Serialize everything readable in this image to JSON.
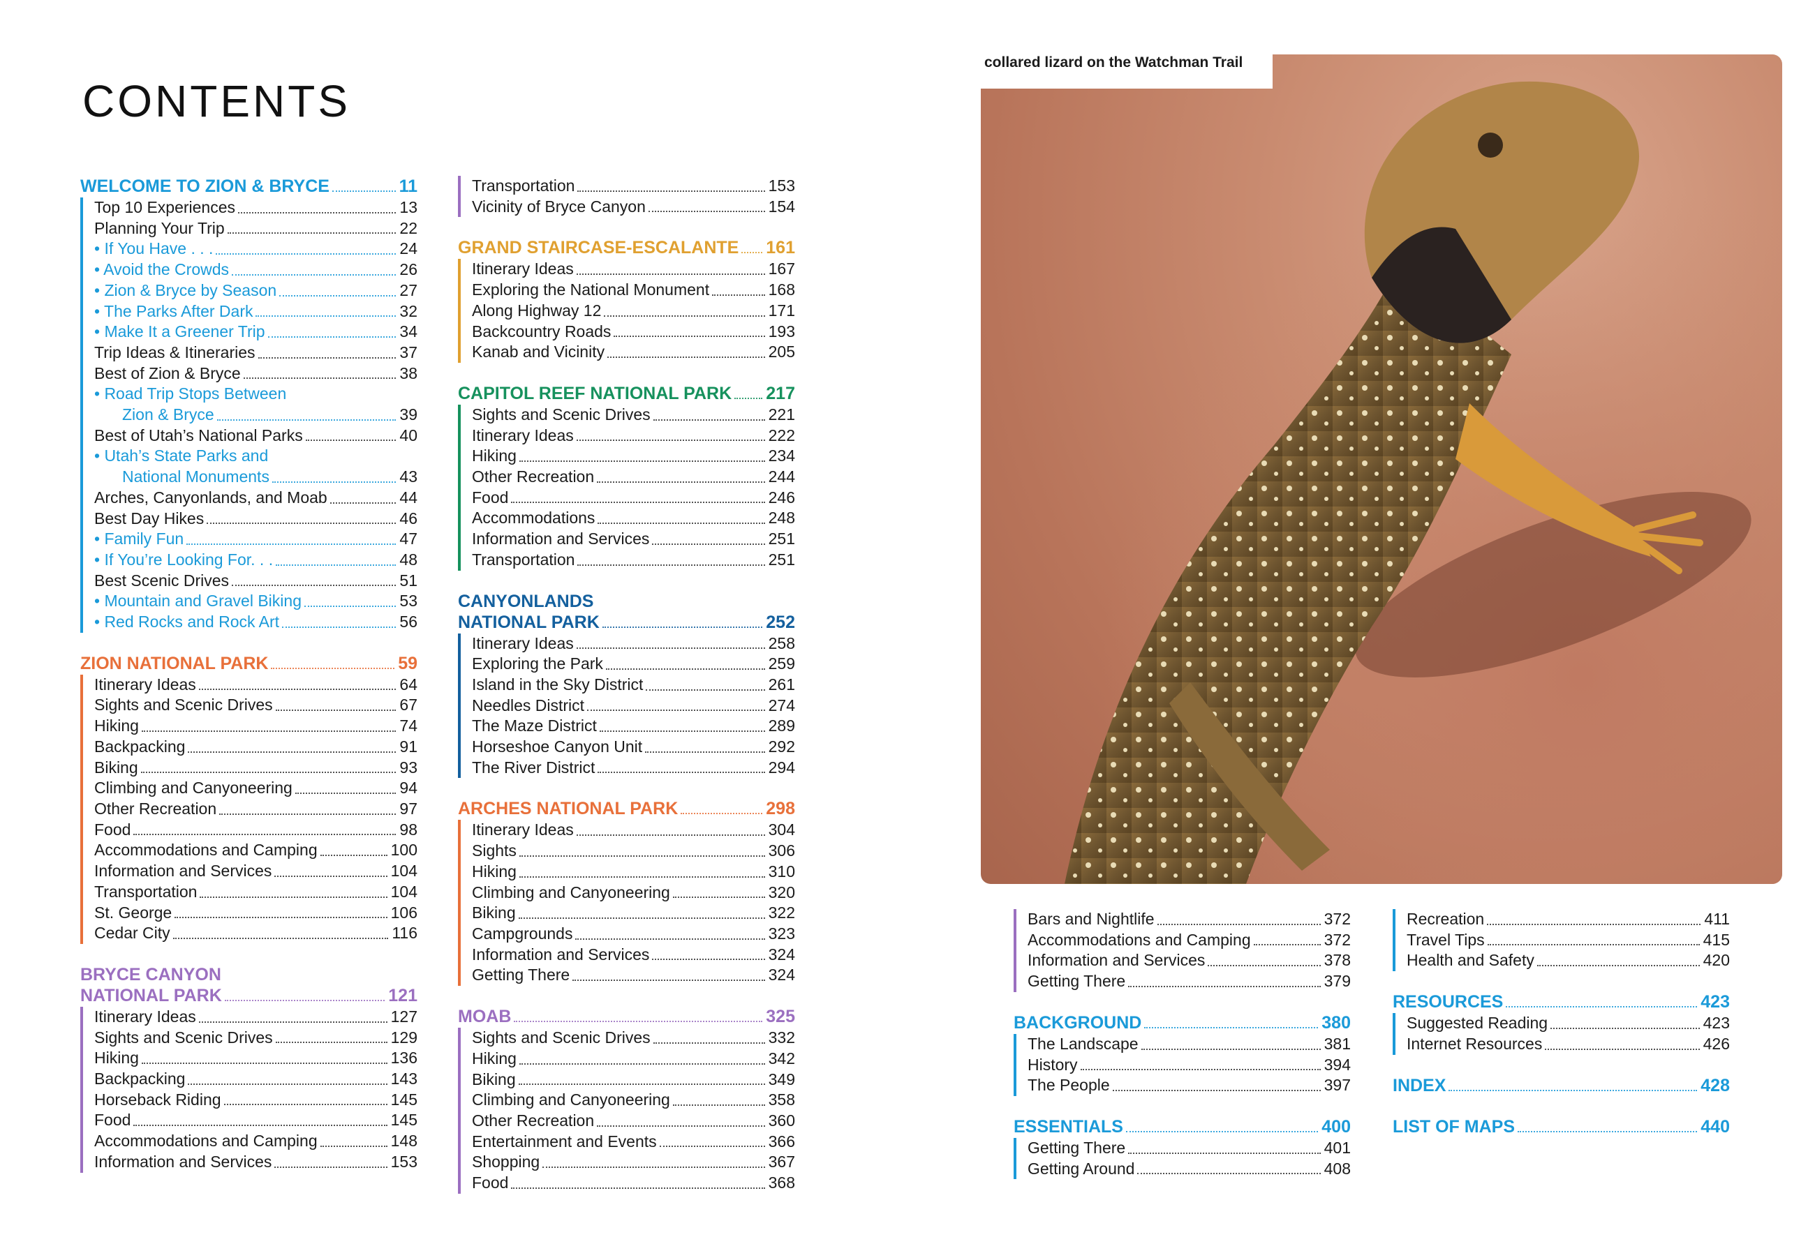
{
  "title": "CONTENTS",
  "photo": {
    "caption": "collared lizard on the Watchman Trail"
  },
  "columns": [
    {
      "sections": [
        {
          "title": "WELCOME TO ZION & BRYCE",
          "page": "11",
          "color": "#1a9ad9",
          "items": [
            {
              "label": "Top 10 Experiences",
              "page": "13"
            },
            {
              "label": "Planning Your Trip",
              "page": "22"
            },
            {
              "label": "• If You Have . . .",
              "page": "24",
              "sub": true
            },
            {
              "label": "• Avoid the Crowds",
              "page": "26",
              "sub": true
            },
            {
              "label": "• Zion & Bryce by Season",
              "page": "27",
              "sub": true
            },
            {
              "label": "• The Parks After Dark",
              "page": "32",
              "sub": true
            },
            {
              "label": "• Make It a Greener Trip",
              "page": "34",
              "sub": true
            },
            {
              "label": "Trip Ideas & Itineraries",
              "page": "37"
            },
            {
              "label": "Best of Zion & Bryce",
              "page": "38"
            },
            {
              "label": "• Road Trip Stops Between",
              "label2": "Zion & Bryce",
              "page": "39",
              "sub": true
            },
            {
              "label": "Best of Utah’s National Parks",
              "page": "40"
            },
            {
              "label": "• Utah’s State Parks and",
              "label2": "National Monuments",
              "page": "43",
              "sub": true
            },
            {
              "label": "Arches, Canyonlands, and Moab",
              "page": "44"
            },
            {
              "label": "Best Day Hikes",
              "page": "46"
            },
            {
              "label": "• Family Fun",
              "page": "47",
              "sub": true
            },
            {
              "label": "• If You’re Looking For. . .",
              "page": "48",
              "sub": true
            },
            {
              "label": "Best Scenic Drives",
              "page": "51"
            },
            {
              "label": "• Mountain and Gravel Biking",
              "page": "53",
              "sub": true
            },
            {
              "label": "• Red Rocks and Rock Art",
              "page": "56",
              "sub": true
            }
          ]
        },
        {
          "title": "ZION NATIONAL PARK",
          "page": "59",
          "color": "#e8703a",
          "items": [
            {
              "label": "Itinerary Ideas",
              "page": "64"
            },
            {
              "label": "Sights and Scenic Drives",
              "page": "67"
            },
            {
              "label": "Hiking",
              "page": "74"
            },
            {
              "label": "Backpacking",
              "page": "91"
            },
            {
              "label": "Biking",
              "page": "93"
            },
            {
              "label": "Climbing and Canyoneering",
              "page": "94"
            },
            {
              "label": "Other Recreation",
              "page": "97"
            },
            {
              "label": "Food",
              "page": "98"
            },
            {
              "label": "Accommodations and Camping",
              "page": "100"
            },
            {
              "label": "Information and Services",
              "page": "104"
            },
            {
              "label": "Transportation",
              "page": "104"
            },
            {
              "label": "St. George",
              "page": "106"
            },
            {
              "label": "Cedar City",
              "page": "116"
            }
          ]
        },
        {
          "title": "BRYCE CANYON",
          "title2": "NATIONAL PARK",
          "page": "121",
          "color": "#9b6fc0",
          "items": [
            {
              "label": "Itinerary Ideas",
              "page": "127"
            },
            {
              "label": "Sights and Scenic Drives",
              "page": "129"
            },
            {
              "label": "Hiking",
              "page": "136"
            },
            {
              "label": "Backpacking",
              "page": "143"
            },
            {
              "label": "Horseback Riding",
              "page": "145"
            },
            {
              "label": "Food",
              "page": "145"
            },
            {
              "label": "Accommodations and Camping",
              "page": "148"
            },
            {
              "label": "Information and Services",
              "page": "153"
            }
          ]
        }
      ]
    },
    {
      "sections": [
        {
          "title": "",
          "page": "",
          "color": "#9b6fc0",
          "items": [
            {
              "label": "Transportation",
              "page": "153"
            },
            {
              "label": "Vicinity of Bryce Canyon",
              "page": "154"
            }
          ]
        },
        {
          "title": "GRAND STAIRCASE-ESCALANTE",
          "page": "161",
          "color": "#e0a030",
          "items": [
            {
              "label": "Itinerary Ideas",
              "page": "167"
            },
            {
              "label": "Exploring the National Monument",
              "page": "168"
            },
            {
              "label": "Along Highway 12",
              "page": "171"
            },
            {
              "label": "Backcountry Roads",
              "page": "193"
            },
            {
              "label": "Kanab and Vicinity",
              "page": "205"
            }
          ]
        },
        {
          "title": "CAPITOL REEF NATIONAL PARK",
          "page": "217",
          "color": "#16915d",
          "items": [
            {
              "label": "Sights and Scenic Drives",
              "page": "221"
            },
            {
              "label": "Itinerary Ideas",
              "page": "222"
            },
            {
              "label": "Hiking",
              "page": "234"
            },
            {
              "label": "Other Recreation",
              "page": "244"
            },
            {
              "label": "Food",
              "page": "246"
            },
            {
              "label": "Accommodations",
              "page": "248"
            },
            {
              "label": "Information and Services",
              "page": "251"
            },
            {
              "label": "Transportation",
              "page": "251"
            }
          ]
        },
        {
          "title": "CANYONLANDS",
          "title2": "NATIONAL PARK",
          "page": "252",
          "color": "#14609e",
          "items": [
            {
              "label": "Itinerary Ideas",
              "page": "258"
            },
            {
              "label": "Exploring the Park",
              "page": "259"
            },
            {
              "label": "Island in the Sky District",
              "page": "261"
            },
            {
              "label": "Needles District",
              "page": "274"
            },
            {
              "label": "The Maze District",
              "page": "289"
            },
            {
              "label": "Horseshoe Canyon Unit",
              "page": "292"
            },
            {
              "label": "The River District",
              "page": "294"
            }
          ]
        },
        {
          "title": "ARCHES NATIONAL PARK",
          "page": "298",
          "color": "#e8703a",
          "items": [
            {
              "label": "Itinerary Ideas",
              "page": "304"
            },
            {
              "label": "Sights",
              "page": "306"
            },
            {
              "label": "Hiking",
              "page": "310"
            },
            {
              "label": "Climbing and Canyoneering",
              "page": "320"
            },
            {
              "label": "Biking",
              "page": "322"
            },
            {
              "label": "Campgrounds",
              "page": "323"
            },
            {
              "label": "Information and Services",
              "page": "324"
            },
            {
              "label": "Getting There",
              "page": "324"
            }
          ]
        },
        {
          "title": "MOAB",
          "page": "325",
          "color": "#9b6fc0",
          "items": [
            {
              "label": "Sights and Scenic Drives",
              "page": "332"
            },
            {
              "label": "Hiking",
              "page": "342"
            },
            {
              "label": "Biking",
              "page": "349"
            },
            {
              "label": "Climbing and Canyoneering",
              "page": "358"
            },
            {
              "label": "Other Recreation",
              "page": "360"
            },
            {
              "label": "Entertainment and Events",
              "page": "366"
            },
            {
              "label": "Shopping",
              "page": "367"
            },
            {
              "label": "Food",
              "page": "368"
            }
          ]
        }
      ]
    },
    {
      "sections": [
        {
          "title": "",
          "page": "",
          "color": "#9b6fc0",
          "items": [
            {
              "label": "Bars and Nightlife",
              "page": "372"
            },
            {
              "label": "Accommodations and Camping",
              "page": "372"
            },
            {
              "label": "Information and Services",
              "page": "378"
            },
            {
              "label": "Getting There",
              "page": "379"
            }
          ]
        },
        {
          "title": "BACKGROUND",
          "page": "380",
          "color": "#1a9ad9",
          "items": [
            {
              "label": "The Landscape",
              "page": "381"
            },
            {
              "label": "History",
              "page": "394"
            },
            {
              "label": "The People",
              "page": "397"
            }
          ]
        },
        {
          "title": "ESSENTIALS",
          "page": "400",
          "color": "#1a9ad9",
          "items": [
            {
              "label": "Getting There",
              "page": "401"
            },
            {
              "label": "Getting Around",
              "page": "408"
            }
          ]
        }
      ]
    },
    {
      "sections": [
        {
          "title": "",
          "page": "",
          "color": "#1a9ad9",
          "items": [
            {
              "label": "Recreation",
              "page": "411"
            },
            {
              "label": "Travel Tips",
              "page": "415"
            },
            {
              "label": "Health and Safety",
              "page": "420"
            }
          ]
        },
        {
          "title": "RESOURCES",
          "page": "423",
          "color": "#1a9ad9",
          "items": [
            {
              "label": "Suggested Reading",
              "page": "423"
            },
            {
              "label": "Internet Resources",
              "page": "426"
            }
          ]
        },
        {
          "title": "INDEX",
          "page": "428",
          "color": "#1a9ad9",
          "items": []
        },
        {
          "title": "LIST OF MAPS",
          "page": "440",
          "color": "#1a9ad9",
          "items": []
        }
      ]
    }
  ]
}
